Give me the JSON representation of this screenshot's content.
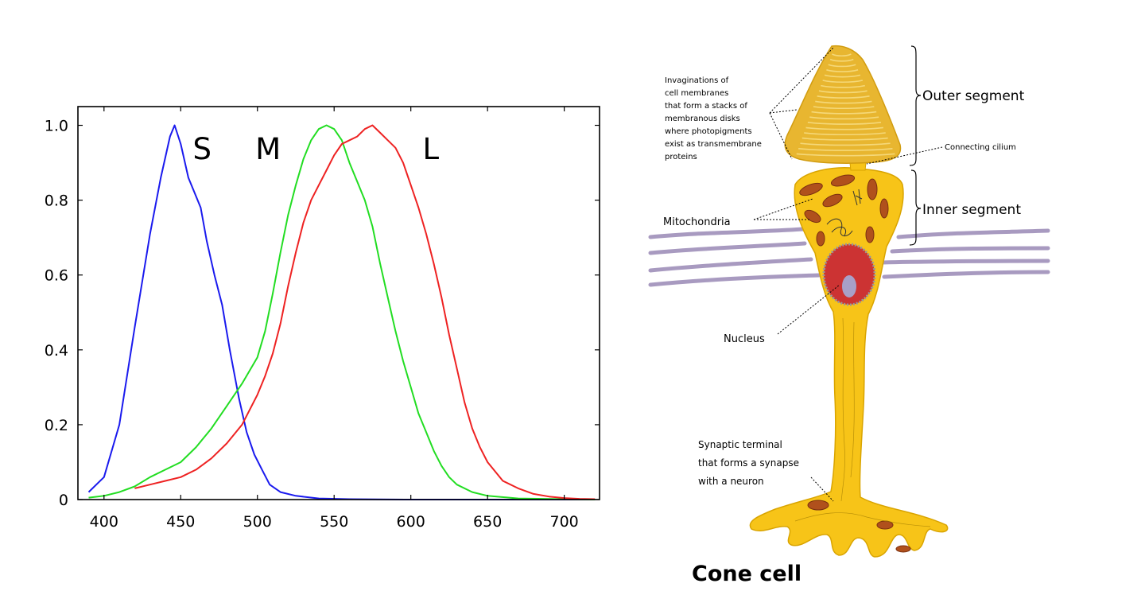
{
  "chart_data": {
    "type": "line",
    "title": "",
    "xlabel": "",
    "ylabel": "",
    "xlim": [
      383,
      723
    ],
    "ylim": [
      0,
      1.05
    ],
    "x_ticks": [
      400,
      450,
      500,
      550,
      600,
      650,
      700
    ],
    "x_tick_labels": [
      "400",
      "450",
      "500",
      "550",
      "600",
      "650",
      "700"
    ],
    "y_ticks": [
      0,
      0.2,
      0.4,
      0.6,
      0.8,
      1.0
    ],
    "y_tick_labels": [
      "0",
      "0.2",
      "0.4",
      "0.6",
      "0.8",
      "1.0"
    ],
    "grid": false,
    "series": [
      {
        "name": "S",
        "color": "#1a1aee",
        "points": [
          [
            390,
            0.02
          ],
          [
            400,
            0.06
          ],
          [
            410,
            0.2
          ],
          [
            420,
            0.46
          ],
          [
            430,
            0.71
          ],
          [
            437,
            0.86
          ],
          [
            443,
            0.97
          ],
          [
            446,
            1.0
          ],
          [
            450,
            0.95
          ],
          [
            455,
            0.86
          ],
          [
            460,
            0.81
          ],
          [
            463,
            0.78
          ],
          [
            467,
            0.69
          ],
          [
            472,
            0.6
          ],
          [
            477,
            0.52
          ],
          [
            482,
            0.4
          ],
          [
            488,
            0.27
          ],
          [
            493,
            0.18
          ],
          [
            498,
            0.12
          ],
          [
            503,
            0.08
          ],
          [
            508,
            0.04
          ],
          [
            515,
            0.02
          ],
          [
            525,
            0.01
          ],
          [
            540,
            0.003
          ],
          [
            560,
            0.001
          ],
          [
            600,
            0.0
          ],
          [
            720,
            0.0
          ]
        ]
      },
      {
        "name": "M",
        "color": "#22dd22",
        "points": [
          [
            390,
            0.005
          ],
          [
            400,
            0.01
          ],
          [
            410,
            0.02
          ],
          [
            420,
            0.035
          ],
          [
            430,
            0.06
          ],
          [
            440,
            0.08
          ],
          [
            450,
            0.1
          ],
          [
            460,
            0.14
          ],
          [
            470,
            0.19
          ],
          [
            480,
            0.25
          ],
          [
            490,
            0.31
          ],
          [
            500,
            0.38
          ],
          [
            505,
            0.45
          ],
          [
            510,
            0.55
          ],
          [
            515,
            0.66
          ],
          [
            520,
            0.76
          ],
          [
            525,
            0.84
          ],
          [
            530,
            0.91
          ],
          [
            535,
            0.96
          ],
          [
            540,
            0.99
          ],
          [
            545,
            1.0
          ],
          [
            550,
            0.99
          ],
          [
            555,
            0.96
          ],
          [
            560,
            0.9
          ],
          [
            565,
            0.85
          ],
          [
            570,
            0.8
          ],
          [
            575,
            0.73
          ],
          [
            580,
            0.63
          ],
          [
            585,
            0.54
          ],
          [
            590,
            0.45
          ],
          [
            595,
            0.37
          ],
          [
            600,
            0.3
          ],
          [
            605,
            0.23
          ],
          [
            610,
            0.18
          ],
          [
            615,
            0.13
          ],
          [
            620,
            0.09
          ],
          [
            625,
            0.06
          ],
          [
            630,
            0.04
          ],
          [
            640,
            0.02
          ],
          [
            650,
            0.01
          ],
          [
            670,
            0.003
          ],
          [
            700,
            0.001
          ],
          [
            720,
            0.0
          ]
        ]
      },
      {
        "name": "L",
        "color": "#ee2222",
        "points": [
          [
            420,
            0.03
          ],
          [
            430,
            0.04
          ],
          [
            440,
            0.05
          ],
          [
            450,
            0.06
          ],
          [
            460,
            0.08
          ],
          [
            470,
            0.11
          ],
          [
            480,
            0.15
          ],
          [
            490,
            0.2
          ],
          [
            500,
            0.28
          ],
          [
            505,
            0.33
          ],
          [
            510,
            0.39
          ],
          [
            515,
            0.47
          ],
          [
            520,
            0.57
          ],
          [
            525,
            0.66
          ],
          [
            530,
            0.74
          ],
          [
            535,
            0.8
          ],
          [
            540,
            0.84
          ],
          [
            545,
            0.88
          ],
          [
            550,
            0.92
          ],
          [
            555,
            0.95
          ],
          [
            560,
            0.96
          ],
          [
            565,
            0.97
          ],
          [
            570,
            0.99
          ],
          [
            575,
            1.0
          ],
          [
            580,
            0.98
          ],
          [
            585,
            0.96
          ],
          [
            590,
            0.94
          ],
          [
            595,
            0.9
          ],
          [
            600,
            0.84
          ],
          [
            605,
            0.78
          ],
          [
            610,
            0.71
          ],
          [
            615,
            0.63
          ],
          [
            620,
            0.54
          ],
          [
            625,
            0.44
          ],
          [
            630,
            0.35
          ],
          [
            635,
            0.26
          ],
          [
            640,
            0.19
          ],
          [
            645,
            0.14
          ],
          [
            650,
            0.1
          ],
          [
            660,
            0.05
          ],
          [
            670,
            0.03
          ],
          [
            680,
            0.015
          ],
          [
            690,
            0.008
          ],
          [
            700,
            0.004
          ],
          [
            710,
            0.002
          ],
          [
            720,
            0.001
          ]
        ]
      }
    ],
    "series_labels": [
      {
        "text": "S",
        "x": 464,
        "y": 0.91
      },
      {
        "text": "M",
        "x": 507,
        "y": 0.91
      },
      {
        "text": "L",
        "x": 613,
        "y": 0.91
      }
    ]
  },
  "cone": {
    "title": "Cone cell",
    "labels": {
      "invaginations": [
        "Invaginations of",
        "cell membranes",
        "that form a stacks of",
        "membranous disks",
        "where photopigments",
        "exist as transmembrane",
        "proteins"
      ],
      "outer_segment": "Outer segment",
      "connecting_cilium": "Connecting cilium",
      "inner_segment": "Inner segment",
      "mitochondria": "Mitochondria",
      "nucleus": "Nucleus",
      "synaptic": [
        "Synaptic terminal",
        "that forms a synapse",
        "with a neuron"
      ]
    },
    "colors": {
      "cell": "#f7c418",
      "outer": "#e8b630",
      "disk_line": "#f5d878",
      "mitochondria": "#b0501c",
      "nucleus": "#cc3333",
      "nucleolus": "#a8a0c8",
      "membrane": "#a89ac0"
    }
  }
}
